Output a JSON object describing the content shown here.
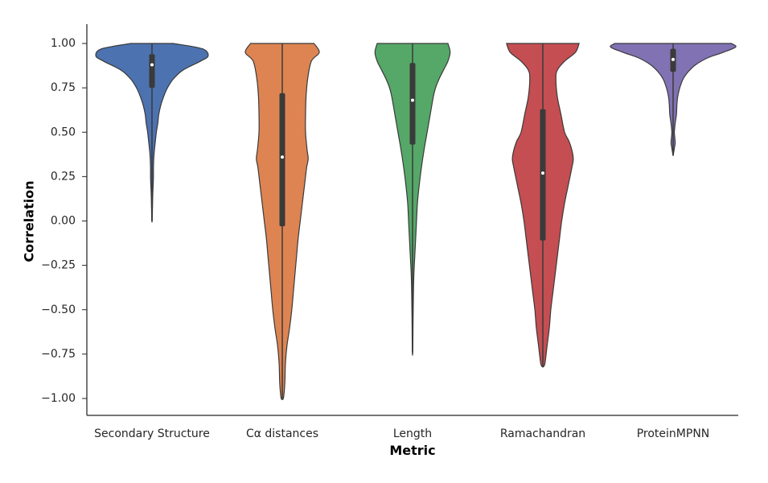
{
  "chart_data": {
    "type": "violin",
    "xlabel": "Metric",
    "ylabel": "Correlation",
    "ylim": [
      -1.05,
      1.1
    ],
    "yticks": [
      1.0,
      0.75,
      0.5,
      0.25,
      0.0,
      -0.25,
      -0.5,
      -0.75,
      -1.0
    ],
    "ytick_labels": [
      "1.00",
      "0.75",
      "0.50",
      "0.25",
      "0.00",
      "−0.25",
      "−0.50",
      "−0.75",
      "−1.00"
    ],
    "categories": [
      "Secondary Structure",
      "Cα distances",
      "Length",
      "Ramachandran",
      "ProteinMPNN"
    ],
    "violins": [
      {
        "category": "Secondary Structure",
        "color": "#4c72b0",
        "min": 0.0,
        "q1": 0.75,
        "median": 0.88,
        "q3": 0.94,
        "max": 1.0,
        "density": [
          [
            1.0,
            0.22
          ],
          [
            0.97,
            0.52
          ],
          [
            0.93,
            0.58
          ],
          [
            0.9,
            0.5
          ],
          [
            0.85,
            0.32
          ],
          [
            0.8,
            0.22
          ],
          [
            0.75,
            0.16
          ],
          [
            0.7,
            0.12
          ],
          [
            0.65,
            0.09
          ],
          [
            0.6,
            0.07
          ],
          [
            0.55,
            0.06
          ],
          [
            0.5,
            0.045
          ],
          [
            0.45,
            0.035
          ],
          [
            0.4,
            0.025
          ],
          [
            0.35,
            0.018
          ],
          [
            0.3,
            0.015
          ],
          [
            0.25,
            0.015
          ],
          [
            0.2,
            0.012
          ],
          [
            0.15,
            0.008
          ],
          [
            0.1,
            0.006
          ],
          [
            0.05,
            0.004
          ],
          [
            0.0,
            0.002
          ]
        ]
      },
      {
        "category": "Cα distances",
        "color": "#dd8452",
        "min": -1.0,
        "q1": -0.03,
        "median": 0.36,
        "q3": 0.72,
        "max": 1.0,
        "density": [
          [
            1.0,
            0.06
          ],
          [
            0.95,
            0.07
          ],
          [
            0.9,
            0.055
          ],
          [
            0.8,
            0.048
          ],
          [
            0.7,
            0.045
          ],
          [
            0.6,
            0.044
          ],
          [
            0.5,
            0.044
          ],
          [
            0.4,
            0.047
          ],
          [
            0.35,
            0.049
          ],
          [
            0.3,
            0.046
          ],
          [
            0.2,
            0.042
          ],
          [
            0.1,
            0.038
          ],
          [
            0.0,
            0.034
          ],
          [
            -0.1,
            0.03
          ],
          [
            -0.2,
            0.027
          ],
          [
            -0.3,
            0.024
          ],
          [
            -0.4,
            0.021
          ],
          [
            -0.5,
            0.018
          ],
          [
            -0.6,
            0.014
          ],
          [
            -0.7,
            0.009
          ],
          [
            -0.8,
            0.006
          ],
          [
            -0.9,
            0.005
          ],
          [
            -0.95,
            0.004
          ],
          [
            -1.0,
            0.002
          ]
        ]
      },
      {
        "category": "Length",
        "color": "#55a868",
        "min": -0.74,
        "q1": 0.43,
        "median": 0.68,
        "q3": 0.89,
        "max": 1.0,
        "density": [
          [
            1.0,
            0.08
          ],
          [
            0.95,
            0.085
          ],
          [
            0.9,
            0.08
          ],
          [
            0.85,
            0.07
          ],
          [
            0.8,
            0.06
          ],
          [
            0.75,
            0.052
          ],
          [
            0.7,
            0.047
          ],
          [
            0.6,
            0.04
          ],
          [
            0.5,
            0.033
          ],
          [
            0.4,
            0.026
          ],
          [
            0.3,
            0.02
          ],
          [
            0.2,
            0.015
          ],
          [
            0.1,
            0.011
          ],
          [
            0.0,
            0.009
          ],
          [
            -0.1,
            0.007
          ],
          [
            -0.2,
            0.005
          ],
          [
            -0.3,
            0.003
          ],
          [
            -0.4,
            0.002
          ],
          [
            -0.5,
            0.0015
          ],
          [
            -0.6,
            0.001
          ],
          [
            -0.74,
            0.0005
          ]
        ]
      },
      {
        "category": "Ramachandran",
        "color": "#c44e52",
        "min": -0.82,
        "q1": -0.11,
        "median": 0.27,
        "q3": 0.63,
        "max": 1.0,
        "density": [
          [
            1.0,
            0.05
          ],
          [
            0.95,
            0.045
          ],
          [
            0.9,
            0.03
          ],
          [
            0.85,
            0.02
          ],
          [
            0.8,
            0.018
          ],
          [
            0.7,
            0.02
          ],
          [
            0.6,
            0.025
          ],
          [
            0.5,
            0.03
          ],
          [
            0.45,
            0.036
          ],
          [
            0.4,
            0.04
          ],
          [
            0.35,
            0.042
          ],
          [
            0.3,
            0.04
          ],
          [
            0.2,
            0.035
          ],
          [
            0.1,
            0.03
          ],
          [
            0.0,
            0.026
          ],
          [
            -0.1,
            0.023
          ],
          [
            -0.2,
            0.02
          ],
          [
            -0.3,
            0.017
          ],
          [
            -0.4,
            0.014
          ],
          [
            -0.5,
            0.011
          ],
          [
            -0.6,
            0.009
          ],
          [
            -0.7,
            0.006
          ],
          [
            -0.8,
            0.003
          ],
          [
            -0.82,
            0.001
          ]
        ]
      },
      {
        "category": "ProteinMPNN",
        "color": "#8172b3",
        "min": 0.37,
        "q1": 0.84,
        "median": 0.91,
        "q3": 0.97,
        "max": 1.0,
        "density": [
          [
            1.0,
            0.7
          ],
          [
            0.98,
            0.75
          ],
          [
            0.95,
            0.6
          ],
          [
            0.92,
            0.42
          ],
          [
            0.88,
            0.27
          ],
          [
            0.84,
            0.18
          ],
          [
            0.8,
            0.12
          ],
          [
            0.75,
            0.08
          ],
          [
            0.7,
            0.055
          ],
          [
            0.65,
            0.045
          ],
          [
            0.6,
            0.04
          ],
          [
            0.55,
            0.025
          ],
          [
            0.5,
            0.015
          ],
          [
            0.47,
            0.02
          ],
          [
            0.44,
            0.025
          ],
          [
            0.41,
            0.015
          ],
          [
            0.38,
            0.005
          ],
          [
            0.37,
            0.002
          ]
        ]
      }
    ]
  }
}
